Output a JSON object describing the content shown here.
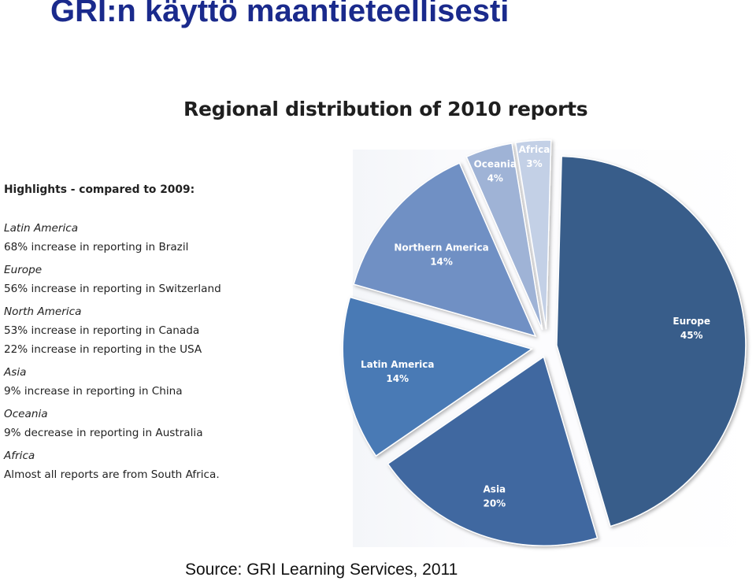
{
  "slide": {
    "title": "GRI:n käyttö maantieteellisesti",
    "source": "Source: GRI Learning Services, 2011"
  },
  "highlights": {
    "header": "Highlights - compared to 2009:",
    "regions": [
      {
        "name": "Latin America",
        "lines": [
          "68% increase in reporting in Brazil"
        ]
      },
      {
        "name": "Europe",
        "lines": [
          "56% increase in reporting in Switzerland"
        ]
      },
      {
        "name": "North America",
        "lines": [
          "53% increase in reporting in Canada",
          "22% increase in reporting in the USA"
        ]
      },
      {
        "name": "Asia",
        "lines": [
          "9% increase in reporting in China"
        ]
      },
      {
        "name": "Oceania",
        "lines": [
          "9% decrease in reporting in Australia"
        ]
      },
      {
        "name": "Africa",
        "lines": [
          "Almost all reports are from South Africa."
        ]
      }
    ]
  },
  "chart_data": {
    "type": "pie",
    "title": "Regional distribution of 2010 reports",
    "slices": [
      {
        "label": "Europe",
        "value": 45,
        "value_label": "45%",
        "color": "#385d8a"
      },
      {
        "label": "Asia",
        "value": 20,
        "value_label": "20%",
        "color": "#3f68a0"
      },
      {
        "label": "Latin America",
        "value": 14,
        "value_label": "14%",
        "color": "#4a7ab5"
      },
      {
        "label": "Northern America",
        "value": 14,
        "value_label": "14%",
        "color": "#7090c4"
      },
      {
        "label": "Oceania",
        "value": 4,
        "value_label": "4%",
        "color": "#9fb3d6"
      },
      {
        "label": "Africa",
        "value": 3,
        "value_label": "3%",
        "color": "#c3d0e6"
      }
    ],
    "exploded": true,
    "legend": "none"
  }
}
